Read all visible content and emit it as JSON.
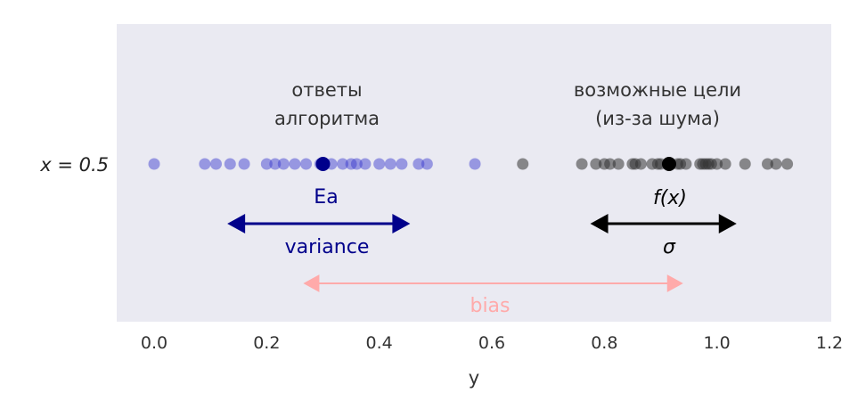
{
  "chart_data": {
    "type": "scatter",
    "xlabel": "y",
    "ylabel": "x = 0.5",
    "xlim": [
      -0.06,
      1.2
    ],
    "xticks": [
      "0.0",
      "0.2",
      "0.4",
      "0.6",
      "0.8",
      "1.0",
      "1.2"
    ],
    "xtick_values": [
      0.0,
      0.2,
      0.4,
      0.6,
      0.8,
      1.0,
      1.2
    ],
    "grid": false,
    "colors": {
      "background": "#eaeaf2",
      "predictions": "#3333cc",
      "mean_prediction": "#00008b",
      "targets": "#333333",
      "mean_target": "#000000",
      "bias": "#ffaaaa"
    },
    "series": [
      {
        "values": [
          0.0,
          0.09,
          0.11,
          0.135,
          0.16,
          0.2,
          0.215,
          0.23,
          0.25,
          0.27,
          0.295,
          0.3,
          0.315,
          0.335,
          0.35,
          0.36,
          0.375,
          0.4,
          0.42,
          0.44,
          0.47,
          0.485,
          0.57
        ]
      },
      {
        "values": [
          0.655,
          0.76,
          0.785,
          0.8,
          0.81,
          0.825,
          0.85,
          0.855,
          0.865,
          0.885,
          0.895,
          0.9,
          0.915,
          0.93,
          0.935,
          0.945,
          0.97,
          0.975,
          0.98,
          0.985,
          0.99,
          1.0,
          1.015,
          1.05,
          1.09,
          1.105,
          1.125
        ]
      },
      {
        "values": [
          0.3
        ]
      },
      {
        "values": [
          0.915
        ]
      }
    ],
    "labels": {
      "predictions_line1": "ответы",
      "predictions_line2": "алгоритма",
      "targets_line1": "возможные цели",
      "targets_line2": "(из-за шума)",
      "mean_prediction": "Ea",
      "variance": "variance",
      "mean_target": "f(x)",
      "sigma": "σ",
      "bias": "bias"
    },
    "arrows": {
      "variance": [
        0.13,
        0.455
      ],
      "sigma": [
        0.775,
        1.035
      ],
      "bias": [
        0.265,
        0.94
      ]
    }
  }
}
